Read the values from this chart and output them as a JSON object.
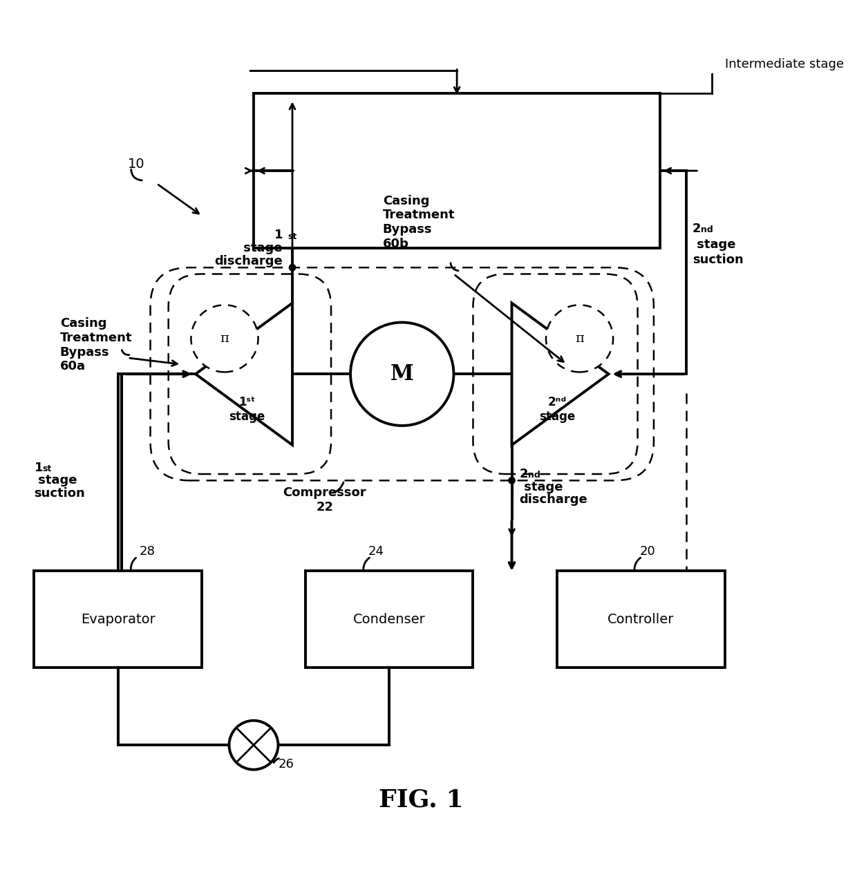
{
  "title": "FIG. 1",
  "bg_color": "#ffffff",
  "fig_width": 12.4,
  "fig_height": 12.59,
  "labels": {
    "intermediate_stage": "Intermediate stage",
    "casing_bypass_60b": "Casing\nTreatment\nBypass\n60b",
    "casing_bypass_60a": "Casing\nTreatment\nBypass\n60a",
    "first_stage_discharge": "1ˢᵗ stage\ndischarge",
    "second_stage_suction": "2ⁿᵈ stage\nsuction",
    "first_stage": "1ˢᵗ\nstage",
    "second_stage": "2ⁿᵈ\nstage",
    "compressor_22": "Compressor\n22",
    "second_stage_discharge": "2ⁿᵈ stage\ndischarge",
    "first_stage_suction": "1ˢᵗ stage\nsuction",
    "evaporator": "Evaporator",
    "condenser": "Condenser",
    "controller": "Controller",
    "motor": "M",
    "label_10": "10",
    "label_20": "20",
    "label_24": "24",
    "label_26": "26",
    "label_28": "28"
  }
}
